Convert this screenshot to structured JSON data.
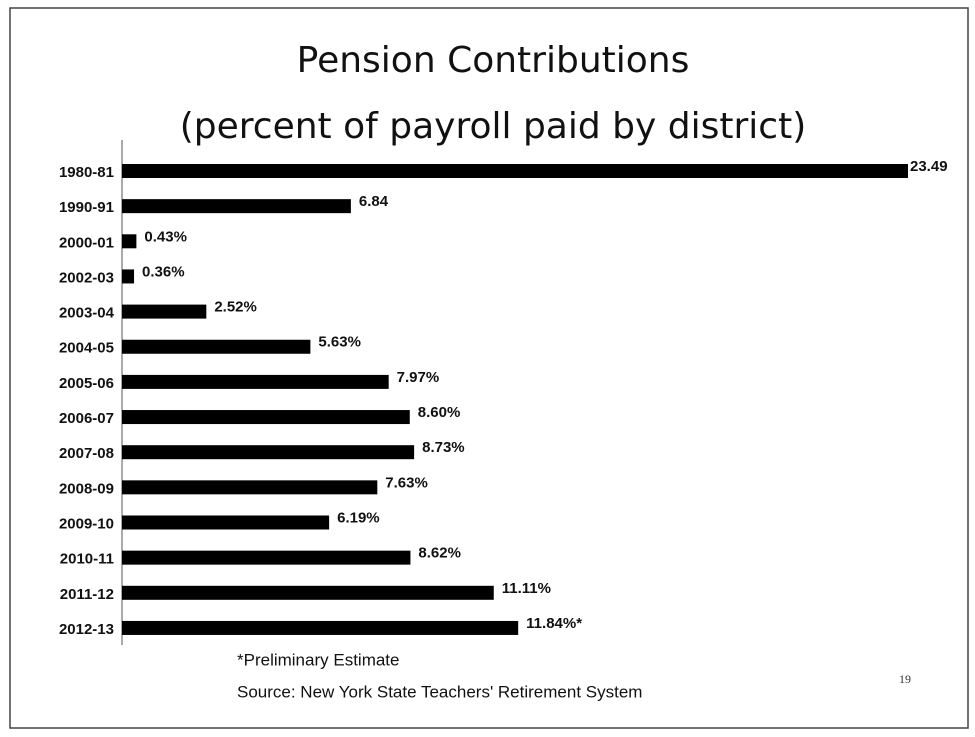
{
  "chart_data": {
    "type": "bar",
    "orientation": "horizontal",
    "title": "Pension Contributions",
    "subtitle": "(percent of payroll paid by district)",
    "categories": [
      "1980-81",
      "1990-91",
      "2000-01",
      "2002-03",
      "2003-04",
      "2004-05",
      "2005-06",
      "2006-07",
      "2007-08",
      "2008-09",
      "2009-10",
      "2010-11",
      "2011-12",
      "2012-13"
    ],
    "values": [
      23.49,
      6.84,
      0.43,
      0.36,
      2.52,
      5.63,
      7.97,
      8.6,
      8.73,
      7.63,
      6.19,
      8.62,
      11.11,
      11.84
    ],
    "value_labels": [
      "23.49",
      "6.84",
      "0.43%",
      "0.36%",
      "2.52%",
      "5.63%",
      "7.97%",
      "8.60%",
      "8.73%",
      "7.63%",
      "6.19%",
      "8.62%",
      "11.11%",
      "11.84%*"
    ],
    "color": "#000000",
    "footnote": "*Preliminary Estimate",
    "source": "Source: New York State Teachers' Retirement System",
    "page_number": "19"
  }
}
